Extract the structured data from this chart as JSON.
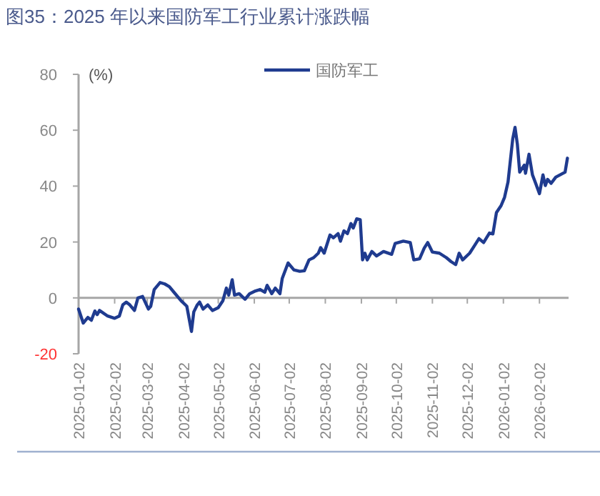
{
  "chart_data": {
    "type": "line",
    "title": "图35：2025 年以来国防军工行业累计涨跌幅",
    "ylabel": "(%)",
    "xlim": [
      "2025-01-02",
      "2026-02-27"
    ],
    "xticks": [
      "2025-01-02",
      "2025-02-02",
      "2025-03-02",
      "2025-04-02",
      "2025-05-02",
      "2025-06-02",
      "2025-07-02",
      "2025-08-02",
      "2025-09-02",
      "2025-10-02",
      "2025-11-02",
      "2025-12-02",
      "2026-01-02",
      "2026-02-02"
    ],
    "ylim": [
      -20,
      80
    ],
    "yticks": [
      -20,
      0,
      20,
      40,
      60,
      80
    ],
    "legend": "top right",
    "series": [
      {
        "name": "国防军工",
        "color": "#1f3b8f",
        "x": [
          "2025-01-02",
          "2025-01-06",
          "2025-01-10",
          "2025-01-13",
          "2025-01-16",
          "2025-01-18",
          "2025-01-20",
          "2025-01-27",
          "2025-02-02",
          "2025-02-06",
          "2025-02-09",
          "2025-02-12",
          "2025-02-15",
          "2025-02-19",
          "2025-02-22",
          "2025-02-26",
          "2025-03-03",
          "2025-03-05",
          "2025-03-08",
          "2025-03-13",
          "2025-03-17",
          "2025-03-21",
          "2025-03-25",
          "2025-03-31",
          "2025-04-05",
          "2025-04-09",
          "2025-04-11",
          "2025-04-14",
          "2025-04-16",
          "2025-04-19",
          "2025-04-23",
          "2025-04-27",
          "2025-05-02",
          "2025-05-06",
          "2025-05-09",
          "2025-05-11",
          "2025-05-14",
          "2025-05-16",
          "2025-05-20",
          "2025-05-25",
          "2025-05-29",
          "2025-06-03",
          "2025-06-07",
          "2025-06-11",
          "2025-06-13",
          "2025-06-17",
          "2025-06-20",
          "2025-06-24",
          "2025-06-26",
          "2025-07-01",
          "2025-07-06",
          "2025-07-11",
          "2025-07-15",
          "2025-07-19",
          "2025-07-23",
          "2025-07-27",
          "2025-07-29",
          "2025-08-01",
          "2025-08-06",
          "2025-08-09",
          "2025-08-13",
          "2025-08-15",
          "2025-08-18",
          "2025-08-21",
          "2025-08-24",
          "2025-08-26",
          "2025-08-29",
          "2025-09-01",
          "2025-09-03",
          "2025-09-05",
          "2025-09-07",
          "2025-09-11",
          "2025-09-15",
          "2025-09-21",
          "2025-09-28",
          "2025-10-01",
          "2025-10-08",
          "2025-10-14",
          "2025-10-17",
          "2025-10-22",
          "2025-10-26",
          "2025-10-29",
          "2025-11-02",
          "2025-11-08",
          "2025-11-14",
          "2025-11-18",
          "2025-11-22",
          "2025-11-25",
          "2025-11-28",
          "2025-12-04",
          "2025-12-08",
          "2025-12-12",
          "2025-12-16",
          "2025-12-21",
          "2025-12-24",
          "2025-12-27",
          "2025-12-31",
          "2026-01-03",
          "2026-01-06",
          "2026-01-10",
          "2026-01-12",
          "2026-01-14",
          "2026-01-16",
          "2026-01-20",
          "2026-01-21",
          "2026-01-24",
          "2026-01-27",
          "2026-01-30",
          "2026-02-02",
          "2026-02-05",
          "2026-02-07",
          "2026-02-09",
          "2026-02-12",
          "2026-02-16",
          "2026-02-24",
          "2026-02-26"
        ],
        "values": [
          -4,
          -9,
          -7,
          -8,
          -4.7,
          -6,
          -4.5,
          -6.5,
          -7.3,
          -6.5,
          -2.5,
          -1.5,
          -2.5,
          -4.5,
          0,
          0.5,
          -4,
          -3,
          3,
          5.5,
          5,
          4,
          2,
          -1,
          -3,
          -12,
          -5,
          -2.5,
          -1.5,
          -4,
          -2.5,
          -4.5,
          -3.5,
          -1,
          3.5,
          1,
          6.5,
          1,
          1.5,
          -0.5,
          1.5,
          2.5,
          3,
          2,
          4.5,
          1.5,
          3.5,
          1.5,
          7,
          12.5,
          10,
          9.5,
          9.7,
          13.6,
          14.4,
          16,
          18,
          16,
          22.5,
          21.5,
          23,
          20.3,
          24,
          23,
          26.6,
          25,
          28.3,
          28,
          13.6,
          16,
          13.6,
          16.6,
          15,
          16.6,
          15.6,
          19.5,
          20.3,
          19.8,
          13.6,
          14,
          17.8,
          19.8,
          16.4,
          16,
          14.4,
          13,
          11.9,
          16,
          13.6,
          16,
          18.6,
          21.2,
          19.8,
          23.2,
          22.9,
          30.5,
          33,
          36,
          41.5,
          56.8,
          61,
          55,
          45,
          47.5,
          44.6,
          51.4,
          44,
          40.7,
          37.3,
          44,
          40.2,
          42.4,
          41,
          43.2,
          45,
          50
        ]
      }
    ]
  }
}
